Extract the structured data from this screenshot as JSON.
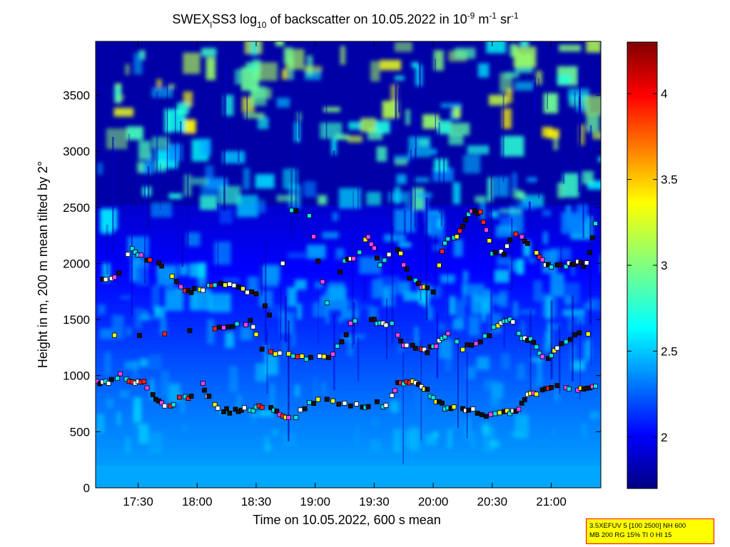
{
  "chart_data": {
    "type": "heatmap",
    "title": {
      "prefix": "SWEX",
      "subscript_1": "l",
      "middle": "SS3 log",
      "subscript_2": "10",
      "suffix": " of backscatter on 10.05.2022 in 10",
      "sup_1": "-9",
      "unit_m": " m",
      "sup_2": "-1",
      "unit_sr": " sr",
      "sup_3": "-1"
    },
    "xlabel": "Time on 10.05.2022, 600 s mean",
    "ylabel": "Height in m, 200 m mean tilted by 2°",
    "x_ticks": [
      "17:30",
      "18:00",
      "18:30",
      "19:00",
      "19:30",
      "20:00",
      "20:30",
      "21:00"
    ],
    "x_tick_hours": [
      17.5,
      18.0,
      18.5,
      19.0,
      19.5,
      20.0,
      20.5,
      21.0
    ],
    "xlim_hours": [
      17.14,
      21.42
    ],
    "y_ticks": [
      "0",
      "500",
      "1000",
      "1500",
      "2000",
      "2500",
      "3000",
      "3500"
    ],
    "y_tick_values": [
      0,
      500,
      1000,
      1500,
      2000,
      2500,
      3000,
      3500
    ],
    "ylim": [
      0,
      3980
    ],
    "colorbar": {
      "ticks": [
        "2",
        "2.5",
        "3",
        "3.5",
        "4"
      ],
      "tick_values": [
        2,
        2.5,
        3,
        3.5,
        4
      ],
      "clim": [
        1.7,
        4.3
      ],
      "colormap": "jet"
    },
    "cloud_layers": [
      {
        "name": "low",
        "points": [
          [
            17.15,
            930
          ],
          [
            17.25,
            940
          ],
          [
            17.35,
            1000
          ],
          [
            17.45,
            940
          ],
          [
            17.55,
            930
          ],
          [
            17.65,
            800
          ],
          [
            17.75,
            700
          ],
          [
            17.85,
            790
          ],
          [
            17.95,
            800
          ],
          [
            18.05,
            920
          ],
          [
            18.1,
            800
          ],
          [
            18.2,
            700
          ],
          [
            18.3,
            680
          ],
          [
            18.4,
            700
          ],
          [
            18.5,
            700
          ],
          [
            18.6,
            760
          ],
          [
            18.7,
            640
          ],
          [
            18.8,
            600
          ],
          [
            18.95,
            760
          ],
          [
            19.1,
            780
          ],
          [
            19.3,
            740
          ],
          [
            19.4,
            720
          ],
          [
            19.5,
            760
          ],
          [
            19.6,
            720
          ],
          [
            19.7,
            940
          ],
          [
            19.8,
            940
          ],
          [
            19.9,
            920
          ],
          [
            20.0,
            800
          ],
          [
            20.1,
            720
          ],
          [
            20.2,
            700
          ],
          [
            20.3,
            700
          ],
          [
            20.45,
            640
          ],
          [
            20.6,
            680
          ],
          [
            20.7,
            680
          ],
          [
            20.8,
            820
          ],
          [
            20.9,
            850
          ],
          [
            21.0,
            900
          ],
          [
            21.1,
            900
          ],
          [
            21.2,
            880
          ],
          [
            21.3,
            900
          ],
          [
            21.4,
            900
          ]
        ]
      },
      {
        "name": "mid",
        "points": [
          [
            17.3,
            1350
          ],
          [
            18.15,
            1420
          ],
          [
            18.3,
            1430
          ],
          [
            18.45,
            1480
          ],
          [
            18.55,
            1250
          ],
          [
            18.7,
            1200
          ],
          [
            18.85,
            1150
          ],
          [
            19.0,
            1170
          ],
          [
            19.15,
            1180
          ],
          [
            19.3,
            1450
          ],
          [
            19.45,
            1540
          ],
          [
            19.55,
            1450
          ],
          [
            19.65,
            1450
          ],
          [
            19.75,
            1280
          ],
          [
            19.85,
            1250
          ],
          [
            19.95,
            1220
          ],
          [
            20.05,
            1300
          ],
          [
            20.15,
            1400
          ],
          [
            20.25,
            1240
          ],
          [
            20.4,
            1300
          ],
          [
            20.55,
            1450
          ],
          [
            20.65,
            1500
          ],
          [
            20.75,
            1350
          ],
          [
            20.85,
            1300
          ],
          [
            20.95,
            1100
          ],
          [
            21.05,
            1250
          ],
          [
            21.2,
            1350
          ],
          [
            21.35,
            1400
          ]
        ]
      },
      {
        "name": "upper",
        "points": [
          [
            17.2,
            1880
          ],
          [
            17.3,
            1860
          ],
          [
            17.45,
            2130
          ],
          [
            17.55,
            2060
          ],
          [
            17.65,
            2000
          ],
          [
            17.75,
            1940
          ],
          [
            17.9,
            1750
          ],
          [
            18.0,
            1760
          ],
          [
            18.1,
            1790
          ],
          [
            18.2,
            1810
          ],
          [
            18.35,
            1800
          ],
          [
            18.5,
            1720
          ],
          [
            18.65,
            1500
          ],
          [
            18.8,
            2480
          ],
          [
            18.95,
            2430
          ],
          [
            19.1,
            1640
          ],
          [
            19.25,
            2040
          ],
          [
            19.35,
            2070
          ],
          [
            19.45,
            2240
          ],
          [
            19.55,
            2000
          ],
          [
            19.7,
            2140
          ],
          [
            19.8,
            1870
          ],
          [
            19.9,
            1790
          ],
          [
            20.0,
            1760
          ],
          [
            20.1,
            2200
          ],
          [
            20.2,
            2230
          ],
          [
            20.3,
            2450
          ],
          [
            20.4,
            2470
          ],
          [
            20.5,
            2090
          ],
          [
            20.6,
            2100
          ],
          [
            20.7,
            2280
          ],
          [
            20.8,
            2180
          ],
          [
            20.9,
            2050
          ],
          [
            21.0,
            1960
          ],
          [
            21.1,
            1980
          ],
          [
            21.2,
            2000
          ],
          [
            21.3,
            1990
          ],
          [
            21.4,
            2480
          ]
        ]
      }
    ]
  },
  "info_box": {
    "line1": "3.5XEFUV 5 [100 2500] NH 600",
    "line2": "MB 200 RG 15% TI 0 HI 15"
  }
}
